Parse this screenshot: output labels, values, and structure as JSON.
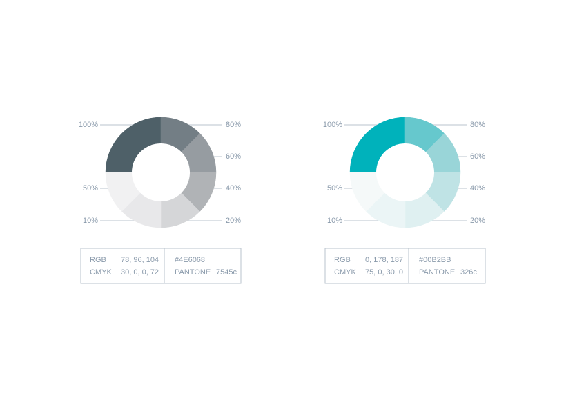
{
  "palettes": [
    {
      "segments": [
        {
          "label": "100%",
          "color": "#4E6068"
        },
        {
          "label": "80%",
          "color": "#737e85"
        },
        {
          "label": "60%",
          "color": "#969ca1"
        },
        {
          "label": "40%",
          "color": "#b0b3b6"
        },
        {
          "label": "20%",
          "color": "#d5d6d8"
        },
        {
          "label": "10%",
          "color": "#e8e8ea"
        },
        {
          "label": "50%",
          "color": "#f1f1f2"
        }
      ],
      "info": {
        "rgb_label": "RGB",
        "rgb": "78, 96, 104",
        "cmyk_label": "CMYK",
        "cmyk": "30, 0, 0, 72",
        "hex": "#4E6068",
        "pantone_label": "PANTONE",
        "pantone": "7545c"
      }
    },
    {
      "segments": [
        {
          "label": "100%",
          "color": "#00B2BB"
        },
        {
          "label": "80%",
          "color": "#66c8cd"
        },
        {
          "label": "60%",
          "color": "#99d5d8"
        },
        {
          "label": "40%",
          "color": "#bfe3e5"
        },
        {
          "label": "20%",
          "color": "#dff0f1"
        },
        {
          "label": "10%",
          "color": "#ebf5f6"
        },
        {
          "label": "50%",
          "color": "#f5f9f9"
        }
      ],
      "info": {
        "rgb_label": "RGB",
        "rgb": "0, 178, 187",
        "cmyk_label": "CMYK",
        "cmyk": "75, 0, 30, 0",
        "hex": "#00B2BB",
        "pantone_label": "PANTONE",
        "pantone": "326c"
      }
    }
  ]
}
